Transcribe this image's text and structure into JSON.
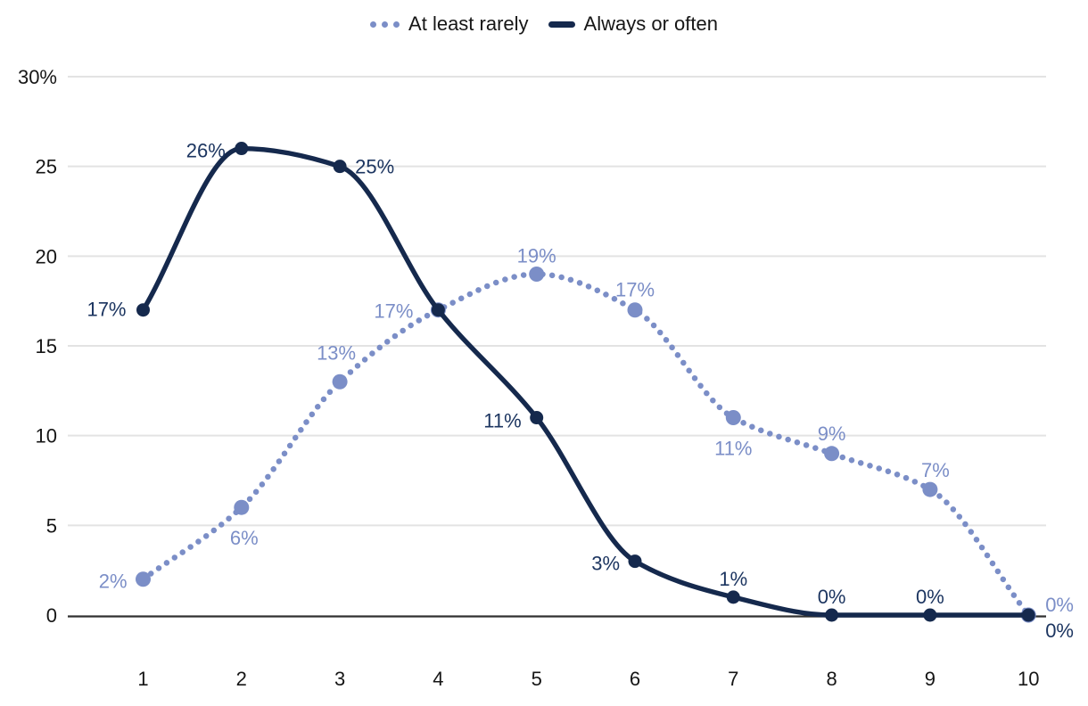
{
  "legend": {
    "items": [
      {
        "label": "At least rarely",
        "marker": "dotted"
      },
      {
        "label": "Always or often",
        "marker": "solid"
      }
    ]
  },
  "chart_data": {
    "type": "line",
    "x": [
      1,
      2,
      3,
      4,
      5,
      6,
      7,
      8,
      9,
      10
    ],
    "xtick_labels": [
      "1",
      "2",
      "3",
      "4",
      "5",
      "6",
      "7",
      "8",
      "9",
      "10"
    ],
    "ytick_values": [
      0,
      5,
      10,
      15,
      20,
      25,
      30
    ],
    "ytick_labels": [
      "0",
      "5",
      "10",
      "15",
      "20",
      "25",
      "30%"
    ],
    "ylim": [
      0,
      30
    ],
    "grid": "horizontal",
    "legend_position": "top-center",
    "title": "",
    "xlabel": "",
    "ylabel": "",
    "series": [
      {
        "name": "At least rarely",
        "style": "dotted",
        "color": "#7b8ec7",
        "label_color": "#7b8ec7",
        "values": [
          2,
          6,
          13,
          17,
          19,
          17,
          11,
          9,
          7,
          0
        ],
        "point_labels": [
          "2%",
          "6%",
          "13%",
          "17%",
          "19%",
          "17%",
          "11%",
          "9%",
          "7%",
          "0%"
        ]
      },
      {
        "name": "Always or often",
        "style": "solid",
        "color": "#15294d",
        "label_color": "#1c3560",
        "values": [
          17,
          26,
          25,
          17,
          11,
          3,
          1,
          0,
          0,
          0
        ],
        "point_labels": [
          "17%",
          "26%",
          "25%",
          "",
          "11%",
          "3%",
          "1%",
          "0%",
          "0%",
          "0%"
        ]
      }
    ]
  },
  "colors": {
    "grid": "#e3e3e3",
    "axis": "#303030",
    "tick_text": "#161616"
  }
}
